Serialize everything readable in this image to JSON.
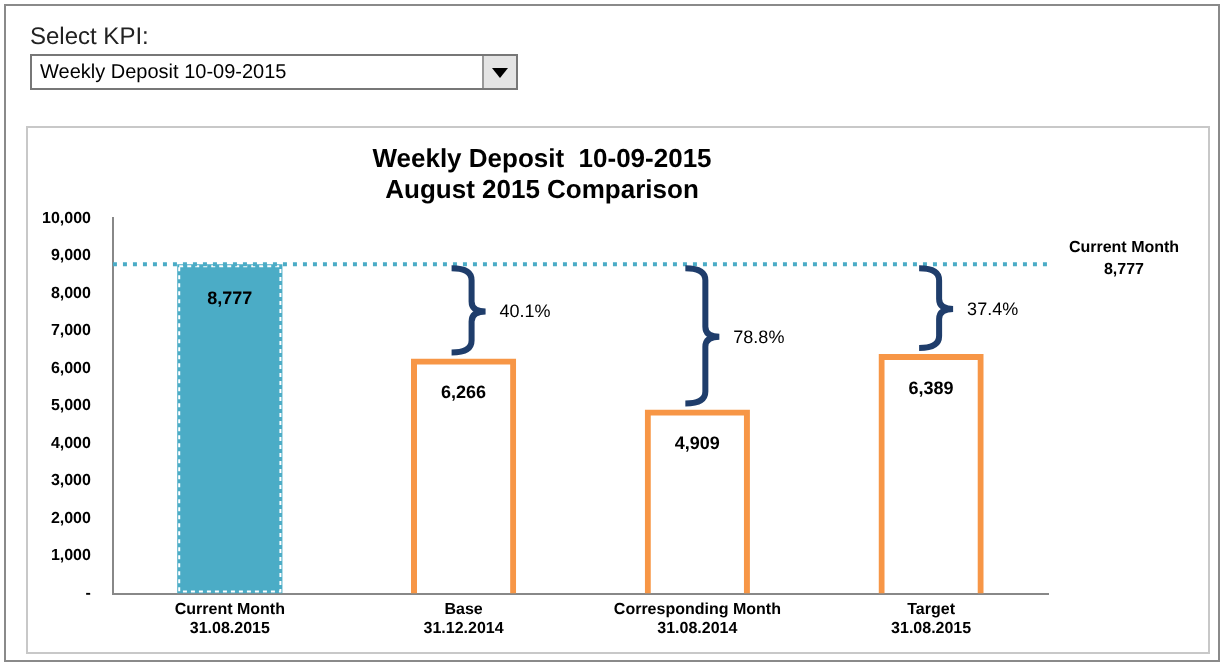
{
  "chart_data": {
    "type": "bar",
    "title": "Weekly Deposit  10-09-2015",
    "subtitle": "August 2015 Comparison",
    "categories": [
      "Current Month\n31.08.2015",
      "Base\n31.12.2014",
      "Corresponding Month\n31.08.2014",
      "Target\n31.08.2015"
    ],
    "series": [
      {
        "color": "#4bacc6",
        "values": [
          8777,
          null,
          null,
          null
        ],
        "value_labels": [
          "8,777",
          null,
          null,
          null
        ]
      },
      {
        "color": "#f79646",
        "values": [
          null,
          6266,
          4909,
          6389
        ],
        "value_labels": [
          null,
          "6,266",
          "4,909",
          "6,389"
        ]
      }
    ],
    "ylim": [
      0,
      10000
    ],
    "yticks": [
      {
        "value": 0,
        "label": "-"
      },
      {
        "value": 1000,
        "label": "1,000"
      },
      {
        "value": 2000,
        "label": "2,000"
      },
      {
        "value": 3000,
        "label": "3,000"
      },
      {
        "value": 4000,
        "label": "4,000"
      },
      {
        "value": 5000,
        "label": "5,000"
      },
      {
        "value": 6000,
        "label": "6,000"
      },
      {
        "value": 7000,
        "label": "7,000"
      },
      {
        "value": 8000,
        "label": "8,000"
      },
      {
        "value": 9000,
        "label": "9,000"
      },
      {
        "value": 10000,
        "label": "10,000"
      }
    ],
    "ref_lines": [
      {
        "axis": "y",
        "value": 8777,
        "label": "Current Month\n8,777",
        "color": "#4bacc6",
        "line_style": "dotted"
      }
    ],
    "annotations": [
      "Select KPI:",
      "Weekly Deposit  10-09-2015",
      {
        "text": "40.1%",
        "x": "Base\n31.12.2014",
        "y": 6266
      },
      {
        "text": "78.8%",
        "x": "Corresponding Month\n31.08.2014",
        "y": 4909
      },
      {
        "text": "37.4%",
        "x": "Target\n31.08.2015",
        "y": 6389
      }
    ],
    "grid": false,
    "legend": false
  }
}
